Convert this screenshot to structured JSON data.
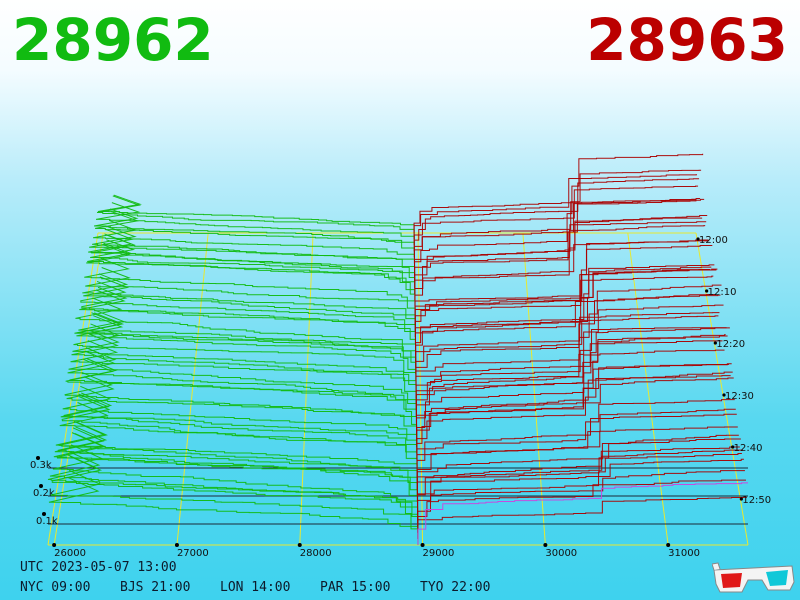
{
  "header": {
    "bid_price": "28962",
    "ask_price": "28963",
    "bid_color": "#11bb11",
    "ask_color": "#bb0000"
  },
  "footer": {
    "utc_label": "UTC 2023-05-07 13:00",
    "timezones": [
      "NYC 09:00",
      "BJS 21:00",
      "LON 14:00",
      "PAR 15:00",
      "TYO 22:00"
    ]
  },
  "icons": {
    "glasses": "3d-glasses-icon"
  },
  "chart_data": {
    "type": "depth-3d-waterfall",
    "x_ticks": [
      "26000",
      "27000",
      "28000",
      "29000",
      "30000",
      "31000"
    ],
    "z_ticks": [
      "0.1k",
      "0.2k",
      "0.3k"
    ],
    "time_ticks": [
      "12:00",
      "12:10",
      "12:20",
      "12:30",
      "12:40",
      "12:50"
    ],
    "xlim": [
      25950,
      31650
    ],
    "mid_price": 28962.5,
    "time_range": [
      "12:00",
      "13:00"
    ],
    "snapshots": 52,
    "series": [
      {
        "side": "bid",
        "color": "#11bb11"
      },
      {
        "side": "ask",
        "color": "#aa0000"
      },
      {
        "side": "latest-ask",
        "color": "#cc44dd"
      }
    ],
    "grid_color": "#e8e830"
  }
}
